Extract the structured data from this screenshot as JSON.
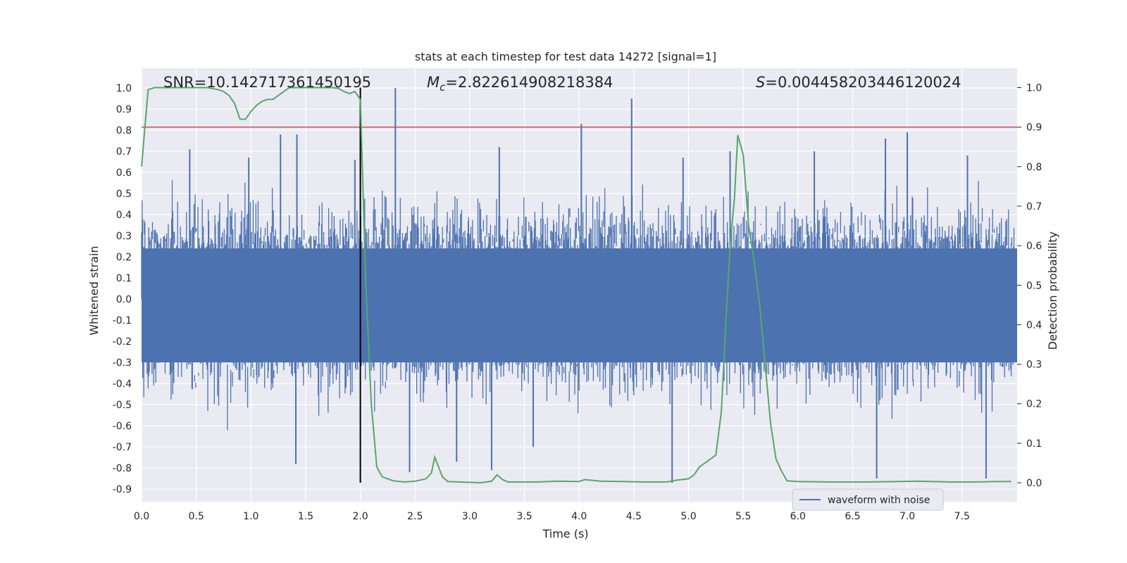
{
  "chart_data": {
    "type": "line",
    "title": "stats at each timestep for test data 14272 [signal=1]",
    "xlabel": "Time (s)",
    "ylabel": "Whitened strain",
    "y2label": "Detection probability",
    "xlim": [
      0,
      8
    ],
    "ylim": [
      -0.97,
      1.08
    ],
    "y2lim": [
      -0.05,
      1.05
    ],
    "x_ticks": [
      "0.0",
      "0.5",
      "1.0",
      "1.5",
      "2.0",
      "2.5",
      "3.0",
      "3.5",
      "4.0",
      "4.5",
      "5.0",
      "5.5",
      "6.0",
      "6.5",
      "7.0",
      "7.5"
    ],
    "y_ticks": [
      "-0.9",
      "-0.8",
      "-0.7",
      "-0.6",
      "-0.5",
      "-0.4",
      "-0.3",
      "-0.2",
      "-0.1",
      "0.0",
      "0.1",
      "0.2",
      "0.3",
      "0.4",
      "0.5",
      "0.6",
      "0.7",
      "0.8",
      "0.9",
      "1.0"
    ],
    "y2_ticks": [
      "0.0",
      "0.1",
      "0.2",
      "0.3",
      "0.4",
      "0.5",
      "0.6",
      "0.7",
      "0.8",
      "0.9",
      "1.0"
    ],
    "grid": true,
    "legend": {
      "placement": "lower-right",
      "entries": [
        "waveform with noise"
      ]
    },
    "annotations": {
      "snr": "SNR=10.142717361450195",
      "mc_symbol": "M",
      "mc_sub": "c",
      "mc_value": "=2.822614908218384",
      "s_symbol": "S",
      "s_value": "=0.004458203446120024"
    },
    "vline_x": 2.0,
    "threshold_y2": 0.9,
    "waveform": {
      "name": "waveform with noise",
      "color": "#4c72b0",
      "note_x_step": 0.005,
      "base_envelope": 0.3,
      "peaks": [
        {
          "x": 0.44,
          "y": 0.71
        },
        {
          "x": 0.98,
          "y": 0.67
        },
        {
          "x": 1.27,
          "y": 0.78
        },
        {
          "x": 1.42,
          "y": 0.78
        },
        {
          "x": 1.41,
          "y": -0.78
        },
        {
          "x": 1.95,
          "y": 0.66
        },
        {
          "x": 2.0,
          "y": 0.96
        },
        {
          "x": 2.32,
          "y": 1.0
        },
        {
          "x": 2.45,
          "y": -0.82
        },
        {
          "x": 2.88,
          "y": -0.77
        },
        {
          "x": 3.2,
          "y": -0.81
        },
        {
          "x": 3.27,
          "y": 0.72
        },
        {
          "x": 3.58,
          "y": -0.7
        },
        {
          "x": 4.02,
          "y": 0.83
        },
        {
          "x": 4.48,
          "y": 0.95
        },
        {
          "x": 4.95,
          "y": 0.67
        },
        {
          "x": 4.85,
          "y": -0.87
        },
        {
          "x": 6.8,
          "y": 0.76
        },
        {
          "x": 6.72,
          "y": -0.85
        },
        {
          "x": 7.0,
          "y": 0.79
        },
        {
          "x": 7.72,
          "y": -0.85
        },
        {
          "x": 5.38,
          "y": 0.7
        },
        {
          "x": 6.15,
          "y": 0.7
        },
        {
          "x": 7.55,
          "y": 0.68
        }
      ]
    },
    "detection_probability": {
      "color": "#55a868",
      "x": [
        0.0,
        0.06,
        0.12,
        0.2,
        0.3,
        0.45,
        0.6,
        0.7,
        0.75,
        0.8,
        0.85,
        0.9,
        0.95,
        1.0,
        1.05,
        1.1,
        1.15,
        1.2,
        1.25,
        1.3,
        1.35,
        1.4,
        1.5,
        1.6,
        1.7,
        1.75,
        1.8,
        1.85,
        1.9,
        1.95,
        2.0,
        2.05,
        2.1,
        2.15,
        2.2,
        2.3,
        2.4,
        2.5,
        2.6,
        2.65,
        2.68,
        2.75,
        2.8,
        2.9,
        3.0,
        3.1,
        3.2,
        3.25,
        3.3,
        3.35,
        3.45,
        3.6,
        3.8,
        4.0,
        4.05,
        4.2,
        4.4,
        4.6,
        4.8,
        4.9,
        5.0,
        5.05,
        5.1,
        5.15,
        5.25,
        5.3,
        5.35,
        5.38,
        5.42,
        5.45,
        5.5,
        5.55,
        5.6,
        5.65,
        5.7,
        5.75,
        5.8,
        5.85,
        5.9,
        6.0,
        6.3,
        6.6,
        6.9,
        7.1,
        7.4,
        7.6,
        7.8,
        7.95
      ],
      "y": [
        0.8,
        0.995,
        1.0,
        1.0,
        1.0,
        1.0,
        1.0,
        0.995,
        0.99,
        0.98,
        0.96,
        0.92,
        0.92,
        0.94,
        0.955,
        0.965,
        0.97,
        0.97,
        0.98,
        0.99,
        1.0,
        1.0,
        1.0,
        1.0,
        1.0,
        1.0,
        0.998,
        0.99,
        0.985,
        0.99,
        0.97,
        0.5,
        0.2,
        0.04,
        0.015,
        0.005,
        0.002,
        0.004,
        0.01,
        0.025,
        0.065,
        0.015,
        0.003,
        0.002,
        0.001,
        0.0,
        0.004,
        0.02,
        0.008,
        0.002,
        0.002,
        0.002,
        0.004,
        0.003,
        0.008,
        0.004,
        0.003,
        0.002,
        0.002,
        0.007,
        0.01,
        0.02,
        0.04,
        0.05,
        0.07,
        0.18,
        0.45,
        0.6,
        0.72,
        0.88,
        0.83,
        0.65,
        0.56,
        0.45,
        0.3,
        0.15,
        0.06,
        0.03,
        0.005,
        0.003,
        0.002,
        0.002,
        0.003,
        0.004,
        0.002,
        0.002,
        0.003,
        0.003
      ]
    }
  }
}
